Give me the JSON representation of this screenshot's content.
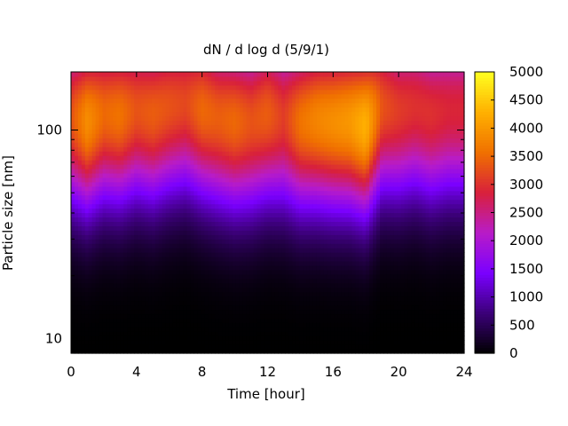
{
  "chart_data": {
    "type": "heatmap",
    "title": "dN / d log d (5/9/1)",
    "xlabel": "Time [hour]",
    "ylabel": "Particle size [nm]",
    "xlim": [
      0,
      24
    ],
    "ylim": [
      8.5,
      190
    ],
    "y_scale": "log",
    "x_ticks": [
      0,
      4,
      8,
      12,
      16,
      20,
      24
    ],
    "x_tick_labels": [
      "0",
      "4",
      "8",
      "12",
      "16",
      "20",
      "24"
    ],
    "y_ticks": [
      10,
      100
    ],
    "y_tick_labels": [
      "10",
      "100"
    ],
    "colorbar": {
      "range": [
        0,
        5000
      ],
      "ticks": [
        0,
        500,
        1000,
        1500,
        2000,
        2500,
        3000,
        3500,
        4000,
        4500,
        5000
      ],
      "tick_labels": [
        "0",
        "500",
        "1000",
        "1500",
        "2000",
        "2500",
        "3000",
        "3500",
        "4000",
        "4500",
        "5000"
      ],
      "palette": [
        "#000000",
        "#3b0078",
        "#7a00ff",
        "#b81cc8",
        "#d8203c",
        "#f07000",
        "#ffb000",
        "#ffff20"
      ]
    },
    "grid": false,
    "legend": "colorbar-right",
    "series": [
      {
        "time": 0.0,
        "peak_size": 115,
        "peak_value": 3300
      },
      {
        "time": 1.0,
        "peak_size": 110,
        "peak_value": 3900
      },
      {
        "time": 2.0,
        "peak_size": 120,
        "peak_value": 3500
      },
      {
        "time": 3.0,
        "peak_size": 118,
        "peak_value": 3600
      },
      {
        "time": 4.0,
        "peak_size": 125,
        "peak_value": 3300
      },
      {
        "time": 5.0,
        "peak_size": 120,
        "peak_value": 3400
      },
      {
        "time": 6.0,
        "peak_size": 130,
        "peak_value": 3300
      },
      {
        "time": 7.0,
        "peak_size": 135,
        "peak_value": 3200
      },
      {
        "time": 8.0,
        "peak_size": 125,
        "peak_value": 3500
      },
      {
        "time": 9.0,
        "peak_size": 115,
        "peak_value": 3400
      },
      {
        "time": 10.0,
        "peak_size": 110,
        "peak_value": 3500
      },
      {
        "time": 11.0,
        "peak_size": 110,
        "peak_value": 3300
      },
      {
        "time": 12.0,
        "peak_size": 120,
        "peak_value": 3400
      },
      {
        "time": 13.0,
        "peak_size": 115,
        "peak_value": 3100
      },
      {
        "time": 14.0,
        "peak_size": 110,
        "peak_value": 3600
      },
      {
        "time": 15.0,
        "peak_size": 112,
        "peak_value": 3800
      },
      {
        "time": 16.0,
        "peak_size": 110,
        "peak_value": 3900
      },
      {
        "time": 17.0,
        "peak_size": 110,
        "peak_value": 4000
      },
      {
        "time": 18.0,
        "peak_size": 105,
        "peak_value": 4300
      },
      {
        "time": 19.0,
        "peak_size": 130,
        "peak_value": 3300
      },
      {
        "time": 20.0,
        "peak_size": 125,
        "peak_value": 3100
      },
      {
        "time": 21.0,
        "peak_size": 130,
        "peak_value": 3000
      },
      {
        "time": 22.0,
        "peak_size": 120,
        "peak_value": 3000
      },
      {
        "time": 23.0,
        "peak_size": 125,
        "peak_value": 2900
      },
      {
        "time": 24.0,
        "peak_size": 125,
        "peak_value": 2900
      }
    ]
  }
}
